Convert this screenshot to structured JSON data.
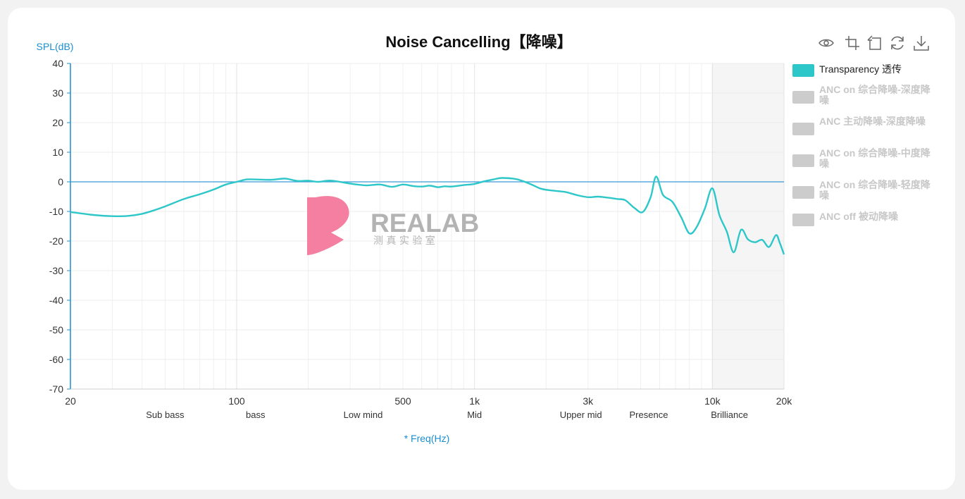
{
  "title": "Noise Cancelling【降噪】",
  "toolbar": [
    {
      "name": "eye-icon",
      "title": "View"
    },
    {
      "name": "crop-icon",
      "title": "Zoom"
    },
    {
      "name": "undo-icon",
      "title": "Restore"
    },
    {
      "name": "refresh-icon",
      "title": "Refresh"
    },
    {
      "name": "download-icon",
      "title": "Save"
    }
  ],
  "legend": [
    {
      "label": "Transparency 透传",
      "color": "#2ec7c9",
      "active": true
    },
    {
      "label": "ANC on 综合降噪-深度降噪",
      "color": "#cccccc",
      "active": false
    },
    {
      "label": "ANC 主动降噪-深度降噪",
      "color": "#cccccc",
      "active": false
    },
    {
      "label": "ANC on 综合降噪-中度降噪",
      "color": "#cccccc",
      "active": false
    },
    {
      "label": "ANC on 综合降噪-轻度降噪",
      "color": "#cccccc",
      "active": false
    },
    {
      "label": "ANC off 被动降噪",
      "color": "#cccccc",
      "active": false
    }
  ],
  "watermark": {
    "brand": "REALAB",
    "sub": "测 真 实 验 室",
    "color": "#f47fa0"
  },
  "chart_data": {
    "type": "line",
    "title": "Noise Cancelling【降噪】",
    "xlabel": "* Freq(Hz)",
    "ylabel": "SPL(dB)",
    "xscale": "log",
    "xlim": [
      20,
      20000
    ],
    "ylim": [
      -70,
      40
    ],
    "yticks": [
      40,
      30,
      20,
      10,
      0,
      -10,
      -20,
      -30,
      -40,
      -50,
      -60,
      -70
    ],
    "xticks": [
      {
        "v": 20,
        "label": "20"
      },
      {
        "v": 100,
        "label": "100"
      },
      {
        "v": 500,
        "label": "500"
      },
      {
        "v": 1000,
        "label": "1k"
      },
      {
        "v": 3000,
        "label": "3k"
      },
      {
        "v": 10000,
        "label": "10k"
      },
      {
        "v": 20000,
        "label": "20k"
      }
    ],
    "bands": [
      {
        "label": "Sub bass",
        "at": 50
      },
      {
        "label": "bass",
        "at": 120
      },
      {
        "label": "Low mind",
        "at": 340
      },
      {
        "label": "Mid",
        "at": 1000
      },
      {
        "label": "Upper mid",
        "at": 2800
      },
      {
        "label": "Presence",
        "at": 5400
      },
      {
        "label": "Brilliance",
        "at": 11800
      }
    ],
    "shaded_region": [
      10000,
      20000
    ],
    "reference_line": 0,
    "grid": true,
    "legend_position": "right",
    "series": [
      {
        "name": "Transparency 透传",
        "color": "#2ec7c9",
        "x": [
          20,
          25,
          30,
          35,
          40,
          45,
          50,
          60,
          70,
          80,
          90,
          100,
          110,
          120,
          140,
          160,
          180,
          200,
          220,
          250,
          300,
          350,
          400,
          450,
          500,
          550,
          600,
          650,
          700,
          750,
          800,
          900,
          1000,
          1100,
          1200,
          1300,
          1500,
          1700,
          1900,
          2100,
          2400,
          2700,
          3000,
          3300,
          3600,
          4000,
          4300,
          4700,
          5100,
          5500,
          5800,
          6200,
          6800,
          7400,
          8000,
          8600,
          9300,
          10000,
          10700,
          11500,
          12300,
          13200,
          14100,
          15100,
          16200,
          17300,
          18500,
          19200,
          20000
        ],
        "y": [
          -10.2,
          -11.2,
          -11.6,
          -11.5,
          -10.8,
          -9.6,
          -8.3,
          -5.8,
          -4.2,
          -2.6,
          -0.9,
          0.0,
          0.8,
          0.8,
          0.7,
          1.1,
          0.3,
          0.4,
          0.0,
          0.4,
          -0.6,
          -1.2,
          -0.9,
          -1.7,
          -0.9,
          -1.4,
          -1.6,
          -1.3,
          -1.8,
          -1.5,
          -1.6,
          -1.1,
          -0.7,
          0.2,
          0.8,
          1.3,
          0.9,
          -0.6,
          -2.3,
          -2.9,
          -3.4,
          -4.5,
          -5.2,
          -5.0,
          -5.3,
          -5.8,
          -6.2,
          -8.8,
          -10.2,
          -5.2,
          1.8,
          -4.4,
          -6.8,
          -12.0,
          -17.4,
          -15.2,
          -9.0,
          -2.2,
          -11.2,
          -16.8,
          -23.8,
          -16.2,
          -19.4,
          -20.4,
          -19.6,
          -22.0,
          -18.0,
          -20.6,
          -24.5
        ]
      }
    ]
  }
}
